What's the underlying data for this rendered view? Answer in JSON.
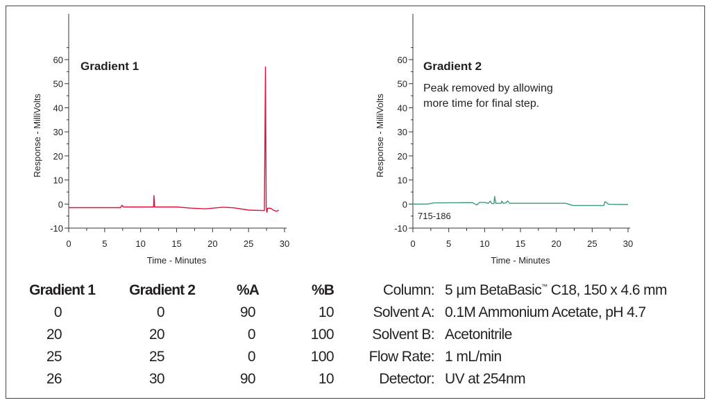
{
  "chart_data": [
    {
      "type": "line",
      "title": "Gradient 1",
      "xlabel": "Time - Minutes",
      "ylabel": "Response - MilliVolts",
      "xlim": [
        0,
        30
      ],
      "ylim": [
        -10,
        60
      ],
      "xticks": [
        0,
        5,
        10,
        15,
        20,
        25,
        30
      ],
      "yticks": [
        -10,
        0,
        10,
        20,
        30,
        40,
        50,
        60
      ],
      "color": "#e0103a",
      "series": [
        {
          "name": "Gradient 1",
          "x": [
            0,
            7.2,
            7.4,
            7.6,
            11.8,
            11.85,
            11.95,
            15,
            17,
            19,
            21.5,
            23,
            25,
            27.2,
            27.35,
            27.45,
            27.55,
            27.65,
            27.8,
            28.1,
            28.5,
            28.9,
            29.2
          ],
          "y": [
            -1.5,
            -1.5,
            -0.5,
            -1.2,
            -1.2,
            3.5,
            -1.2,
            -1.2,
            -1.7,
            -2,
            -1.3,
            -1.6,
            -2.5,
            -2.7,
            57,
            -1.5,
            -3.4,
            -1.8,
            -1.7,
            -1.8,
            -2.6,
            -3,
            -2.5
          ]
        }
      ]
    },
    {
      "type": "line",
      "title": "Gradient 2",
      "annotation": [
        "Peak removed by allowing",
        "more time for final step."
      ],
      "figure_id": "715-186",
      "xlabel": "Time - Minutes",
      "ylabel": "Response - MilliVolts",
      "xlim": [
        0,
        30
      ],
      "ylim": [
        -10,
        60
      ],
      "xticks": [
        0,
        5,
        10,
        15,
        20,
        25,
        30
      ],
      "yticks": [
        -10,
        0,
        10,
        20,
        30,
        40,
        50,
        60
      ],
      "color": "#3d9a7a",
      "series": [
        {
          "name": "Gradient 2",
          "x": [
            0,
            2,
            3,
            8.3,
            8.9,
            9.3,
            10,
            10.5,
            10.8,
            11,
            11.3,
            11.4,
            11.55,
            12.3,
            12.4,
            12.6,
            13,
            13.2,
            13.5,
            21.3,
            22.3,
            26.6,
            26.8,
            27.3,
            30
          ],
          "y": [
            0,
            0,
            0.5,
            0.6,
            -0.4,
            0.7,
            0.7,
            0.3,
            1.2,
            0.2,
            0.2,
            3.2,
            0.3,
            0.3,
            1.2,
            0.3,
            0.5,
            1.3,
            0.3,
            0.3,
            -0.6,
            -0.6,
            1,
            -0.1,
            -0.2
          ]
        }
      ]
    }
  ],
  "gradient_table": {
    "headers": [
      "Gradient 1",
      "Gradient 2",
      "%A",
      "%B"
    ],
    "rows": [
      [
        "0",
        "0",
        "90",
        "10"
      ],
      [
        "20",
        "20",
        "0",
        "100"
      ],
      [
        "25",
        "25",
        "0",
        "100"
      ],
      [
        "26",
        "30",
        "90",
        "10"
      ]
    ]
  },
  "conditions": [
    {
      "label": "Column:",
      "value": "5 µm BetaBasic",
      "tm": "™",
      "value2": " C18, 150 x 4.6 mm"
    },
    {
      "label": "Solvent A:",
      "value": "0.1M Ammonium Acetate, pH 4.7"
    },
    {
      "label": "Solvent B:",
      "value": "Acetonitrile"
    },
    {
      "label": "Flow Rate:",
      "value": "1 mL/min"
    },
    {
      "label": "Detector:",
      "value": "UV at 254nm"
    }
  ]
}
